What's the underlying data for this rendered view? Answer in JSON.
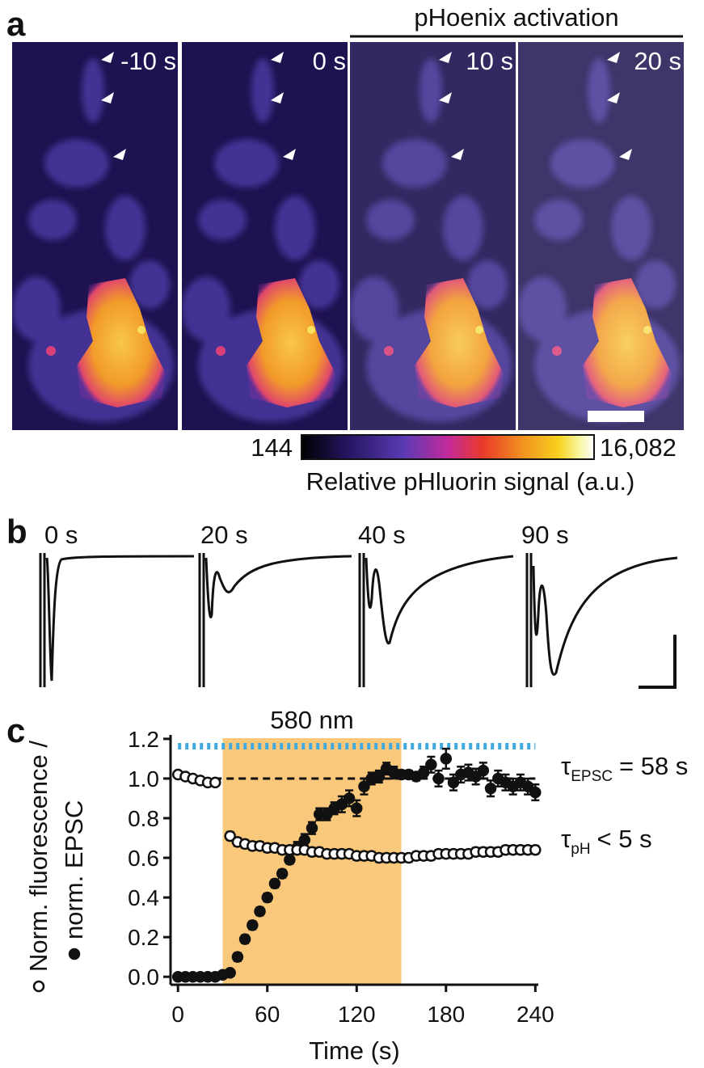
{
  "panel_labels": [
    "a",
    "b",
    "c"
  ],
  "panel_a": {
    "title": "pHoenix activation",
    "labels": [
      "-10 s",
      "0 s",
      "10 s",
      "20 s"
    ],
    "colorbar": {
      "min": 144,
      "max": {
        "value": 16082,
        "label": "16,082"
      },
      "title": "Relative pHluorin signal (a.u.)"
    }
  },
  "panel_b": {
    "labels": [
      "0 s",
      "20 s",
      "40 s",
      "90 s"
    ]
  },
  "chart_data": {
    "type": "scatter",
    "xlabel": "Time (s)",
    "x": [
      0,
      5,
      10,
      15,
      20,
      25,
      30,
      35,
      40,
      45,
      50,
      55,
      60,
      65,
      70,
      75,
      80,
      85,
      90,
      95,
      100,
      105,
      110,
      115,
      120,
      125,
      130,
      135,
      140,
      145,
      150,
      155,
      160,
      165,
      170,
      175,
      180,
      185,
      190,
      195,
      200,
      205,
      210,
      215,
      220,
      225,
      230,
      235,
      240
    ],
    "xlim": [
      -5,
      242
    ],
    "xticks": [
      0,
      60,
      120,
      180,
      240
    ],
    "ylim": [
      -0.04,
      1.22
    ],
    "yticks": [
      {
        "value": 0,
        "label": "0.0"
      },
      0.2,
      0.4,
      0.6,
      0.8,
      {
        "value": 1,
        "label": "1.0"
      },
      1.2
    ],
    "series": [
      {
        "name": "norm. EPSC",
        "marker": "filled",
        "color": "#111111",
        "values": [
          0,
          0,
          0,
          0,
          0,
          0,
          0.01,
          0.02,
          0.1,
          0.19,
          0.26,
          0.33,
          0.4,
          0.47,
          0.52,
          0.59,
          0.65,
          0.69,
          0.75,
          0.82,
          0.82,
          0.85,
          0.87,
          0.9,
          0.85,
          0.96,
          1,
          1.01,
          1.05,
          1.03,
          1.02,
          1.02,
          1.01,
          1.03,
          1.07,
          1,
          1.1,
          0.98,
          1.02,
          1.03,
          1.01,
          1.04,
          0.95,
          1,
          0.98,
          0.96,
          0.98,
          0.96,
          0.93
        ],
        "errors": [
          0.01,
          0.01,
          0.01,
          0.01,
          0.01,
          0.01,
          0.01,
          0.01,
          0.02,
          0.02,
          0.02,
          0.02,
          0.02,
          0.02,
          0.02,
          0.02,
          0.03,
          0.03,
          0.03,
          0.03,
          0.03,
          0.03,
          0.04,
          0.04,
          0.04,
          0.04,
          0.03,
          0.03,
          0.03,
          0.03,
          0.02,
          0.02,
          0.02,
          0.03,
          0.04,
          0.04,
          0.05,
          0.04,
          0.04,
          0.04,
          0.04,
          0.04,
          0.04,
          0.04,
          0.04,
          0.04,
          0.04,
          0.04,
          0.04
        ]
      },
      {
        "name": "Norm. fluorescence /",
        "marker": "open",
        "color": "#111111",
        "values": [
          1.02,
          1.01,
          1,
          0.99,
          0.98,
          0.98,
          null,
          0.71,
          0.68,
          0.67,
          0.66,
          0.66,
          0.65,
          0.65,
          0.64,
          0.64,
          0.64,
          0.64,
          0.63,
          0.63,
          0.62,
          0.62,
          0.62,
          0.62,
          0.61,
          0.61,
          0.61,
          0.6,
          0.6,
          0.6,
          0.6,
          0.6,
          0.61,
          0.61,
          0.61,
          0.62,
          0.62,
          0.62,
          0.62,
          0.62,
          0.63,
          0.63,
          0.63,
          0.63,
          0.64,
          0.64,
          0.64,
          0.64,
          0.64
        ],
        "errors": [
          0.01,
          0.01,
          0.01,
          0.01,
          0.01,
          0.01,
          null,
          0.02,
          0.02,
          0.02,
          0.02,
          0.02,
          0.02,
          0.02,
          0.02,
          0.02,
          0.02,
          0.02,
          0.02,
          0.02,
          0.02,
          0.02,
          0.02,
          0.02,
          0.02,
          0.02,
          0.02,
          0.02,
          0.02,
          0.02,
          0.02,
          0.02,
          0.02,
          0.02,
          0.02,
          0.02,
          0.02,
          0.02,
          0.02,
          0.02,
          0.02,
          0.02,
          0.02,
          0.02,
          0.02,
          0.02,
          0.02,
          0.02,
          0.02
        ]
      }
    ],
    "highlight": {
      "label": "580 nm",
      "x": [
        30,
        150
      ],
      "color": "#f9c87a"
    },
    "reference_line": {
      "y": 1
    },
    "annotations": [
      {
        "symbol": "τ",
        "subscript": "EPSC",
        "text": "= 58 s"
      },
      {
        "symbol": "τ",
        "subscript": "pH",
        "text": "< 5 s"
      }
    ]
  }
}
